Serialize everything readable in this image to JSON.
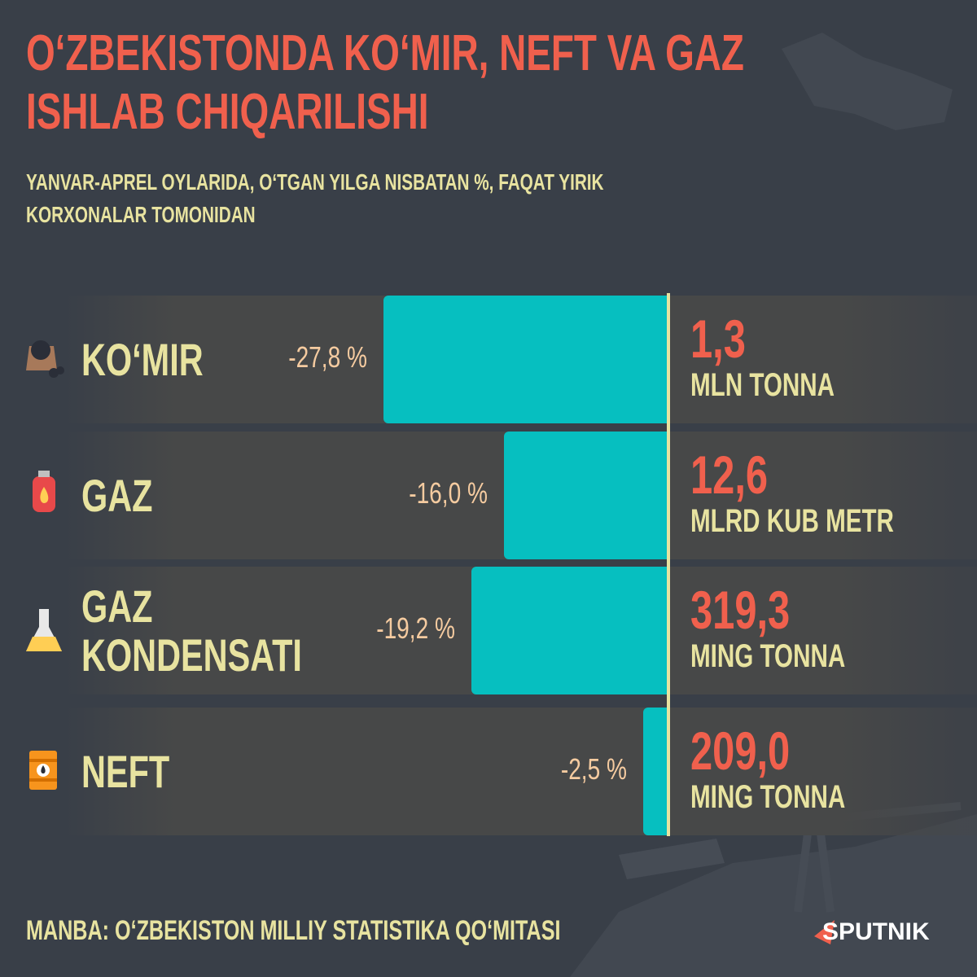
{
  "chart_data": {
    "type": "bar",
    "title": "O‘ZBEKISTONDA KO‘MIR, NEFT VA GAZ ISHLAB CHIQARILISHI",
    "subtitle": "YANVAR-APREL OYLARIDA, O‘TGAN YILGA NISBATAN %, FAQAT YIRIK KORXONALAR TOMONIDAN",
    "categories": [
      "KO‘MIR",
      "GAZ",
      "GAZ KONDENSATI",
      "NEFT"
    ],
    "values": [
      -27.8,
      -16.0,
      -19.2,
      -2.5
    ],
    "value_labels": [
      "-27,8 %",
      "-16,0 %",
      "-19,2 %",
      "-2,5 %"
    ],
    "amount_labels": [
      "1,3",
      "12,6",
      "319,3",
      "209,0"
    ],
    "amount_units": [
      "MLN TONNA",
      "MLRD KUB METR",
      "MING TONNA",
      "MING TONNA"
    ],
    "color": "#06bfc0",
    "source": "MANBA: O‘ZBEKISTON MILLIY STATISTIKA QO‘MITASI",
    "brand": "SPUTNIK"
  }
}
